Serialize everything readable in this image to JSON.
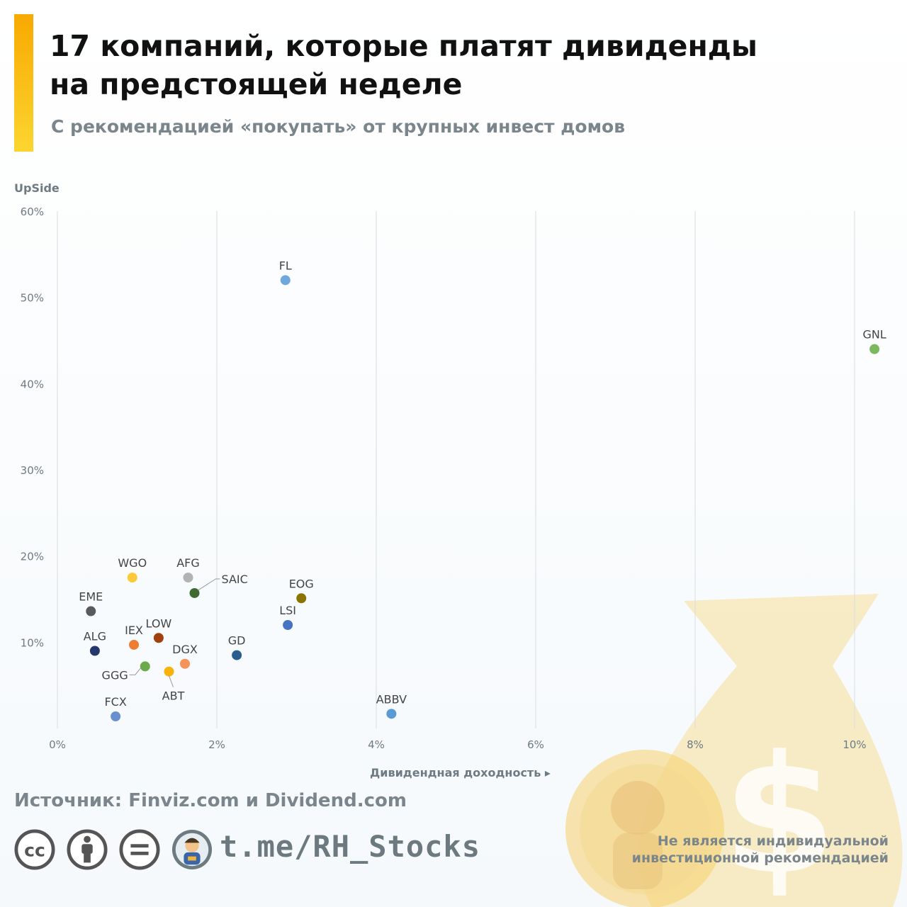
{
  "header": {
    "title_line1": "17 компаний, которые платят дивиденды",
    "title_line2": "на предстоящей неделе",
    "subtitle": "С рекомендацией «покупать» от крупных инвест домов"
  },
  "chart_data": {
    "type": "scatter",
    "ylabel": "UpSide",
    "xlabel": "Дивидендная доходность ▸",
    "xlim": [
      0,
      10.5
    ],
    "ylim": [
      0,
      60
    ],
    "x_ticks": [
      {
        "value": 0,
        "label": "0%"
      },
      {
        "value": 2,
        "label": "2%"
      },
      {
        "value": 4,
        "label": "4%"
      },
      {
        "value": 6,
        "label": "6%"
      },
      {
        "value": 8,
        "label": "8%"
      },
      {
        "value": 10,
        "label": "10%"
      }
    ],
    "y_ticks": [
      {
        "value": 10,
        "label": "10%"
      },
      {
        "value": 20,
        "label": "20%"
      },
      {
        "value": 30,
        "label": "30%"
      },
      {
        "value": 40,
        "label": "40%"
      },
      {
        "value": 50,
        "label": "50%"
      },
      {
        "value": 60,
        "label": "60%"
      }
    ],
    "grid": "vertical",
    "points": [
      {
        "label": "FL",
        "x": 2.86,
        "y": 52.0,
        "color": "#6fa8dc",
        "label_pos": "above"
      },
      {
        "label": "GNL",
        "x": 10.25,
        "y": 44.0,
        "color": "#7cb85e",
        "label_pos": "above"
      },
      {
        "label": "WGO",
        "x": 0.94,
        "y": 17.5,
        "color": "#fcc93a",
        "label_pos": "above"
      },
      {
        "label": "AFG",
        "x": 1.64,
        "y": 17.5,
        "color": "#b3b3b3",
        "label_pos": "above"
      },
      {
        "label": "SAIC",
        "x": 1.72,
        "y": 15.7,
        "color": "#3f6b30",
        "label_pos": "leader-right"
      },
      {
        "label": "EOG",
        "x": 3.06,
        "y": 15.1,
        "color": "#8a7400",
        "label_pos": "above"
      },
      {
        "label": "EME",
        "x": 0.42,
        "y": 13.6,
        "color": "#5a5a5a",
        "label_pos": "above"
      },
      {
        "label": "LSI",
        "x": 2.89,
        "y": 12.0,
        "color": "#4472c4",
        "label_pos": "above"
      },
      {
        "label": "LOW",
        "x": 1.27,
        "y": 10.5,
        "color": "#a0420e",
        "label_pos": "above"
      },
      {
        "label": "IEX",
        "x": 0.96,
        "y": 9.7,
        "color": "#ed7d31",
        "label_pos": "above"
      },
      {
        "label": "ALG",
        "x": 0.47,
        "y": 9.0,
        "color": "#24386e",
        "label_pos": "above"
      },
      {
        "label": "GD",
        "x": 2.25,
        "y": 8.5,
        "color": "#2a5e8c",
        "label_pos": "above"
      },
      {
        "label": "DGX",
        "x": 1.6,
        "y": 7.5,
        "color": "#f4935a",
        "label_pos": "above"
      },
      {
        "label": "GGG",
        "x": 1.1,
        "y": 7.2,
        "color": "#6aaa4a",
        "label_pos": "leader-left"
      },
      {
        "label": "ABT",
        "x": 1.4,
        "y": 6.6,
        "color": "#f8b30a",
        "label_pos": "below"
      },
      {
        "label": "ABBV",
        "x": 4.19,
        "y": 1.7,
        "color": "#5b9bd5",
        "label_pos": "above"
      },
      {
        "label": "FCX",
        "x": 0.73,
        "y": 1.4,
        "color": "#6a8fcf",
        "label_pos": "above"
      }
    ]
  },
  "footer": {
    "source": "Источник: Finviz.com и Dividend.com",
    "link": "t.me/RH_Stocks",
    "disclaimer_line1": "Не является индивидуальной",
    "disclaimer_line2": "инвестиционной рекомендацией",
    "icons": [
      "cc-icon",
      "by-icon",
      "nd-icon",
      "avatar"
    ]
  }
}
